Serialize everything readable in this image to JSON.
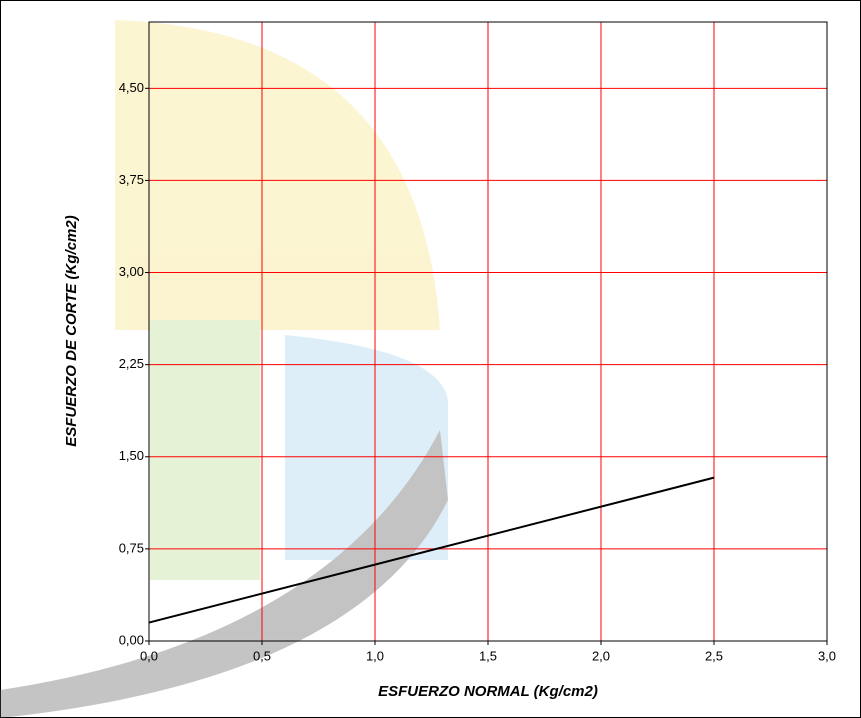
{
  "chart_data": {
    "type": "line",
    "x_label": "ESFUERZO NORMAL (Kg/cm2)",
    "y_label": "ESFUERZO DE CORTE (Kg/cm2)",
    "x": [
      0,
      2.5
    ],
    "series": [
      {
        "color": "#000000",
        "values": [
          0.15,
          1.33
        ]
      }
    ],
    "xlim": [
      0,
      3
    ],
    "ylim": [
      0,
      5.04
    ],
    "xticks": [
      {
        "value": 0,
        "label": "0,0"
      },
      {
        "value": 0.5,
        "label": "0,5"
      },
      {
        "value": 1,
        "label": "1,0"
      },
      {
        "value": 1.5,
        "label": "1,5"
      },
      {
        "value": 2,
        "label": "2,0"
      },
      {
        "value": 2.5,
        "label": "2,5"
      },
      {
        "value": 3,
        "label": "3,0"
      }
    ],
    "yticks": [
      {
        "value": 0,
        "label": "0,00"
      },
      {
        "value": 0.75,
        "label": "0,75"
      },
      {
        "value": 1.5,
        "label": "1,50"
      },
      {
        "value": 2.25,
        "label": "2,25"
      },
      {
        "value": 3,
        "label": "3,00"
      },
      {
        "value": 3.75,
        "label": "3,75"
      },
      {
        "value": 4.5,
        "label": "4,50"
      }
    ],
    "grid": true,
    "grid_color": "#ff0000"
  }
}
